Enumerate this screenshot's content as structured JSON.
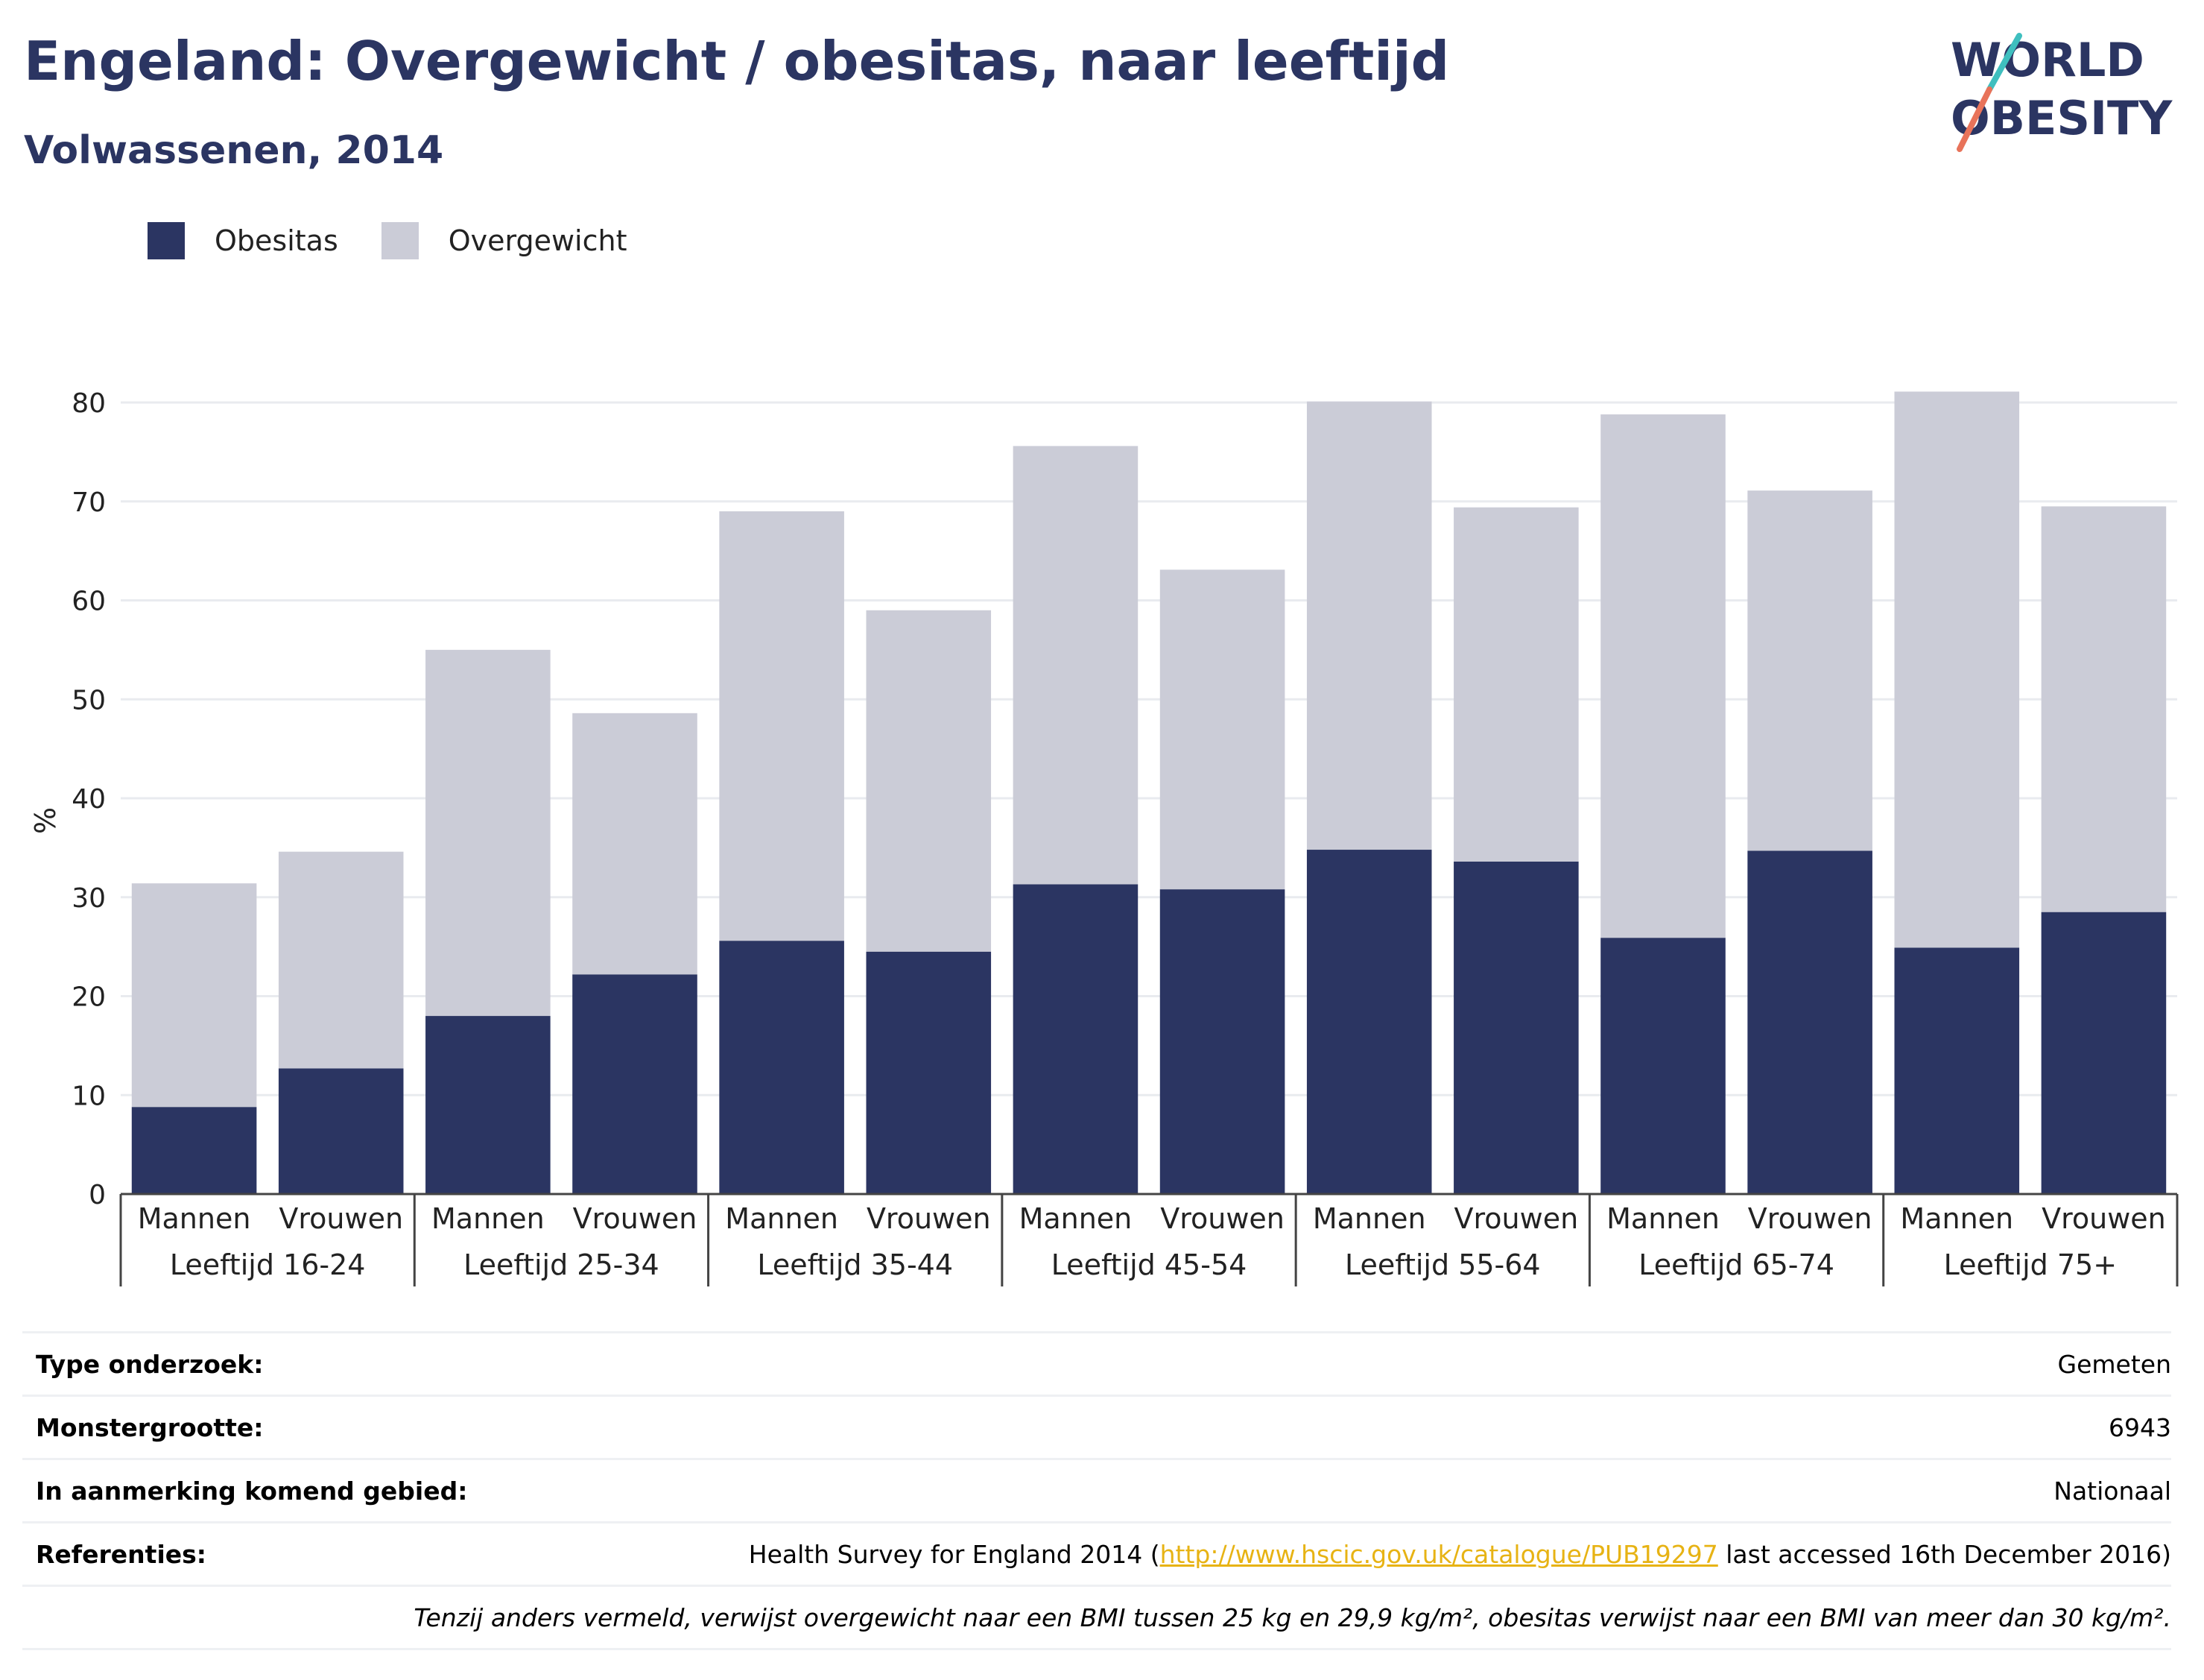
{
  "header": {
    "title": "Engeland: Overgewicht / obesitas, naar leeftijd",
    "subtitle": "Volwassenen, 2014"
  },
  "logo": {
    "line1": "WORLD",
    "line2": "OBESITY",
    "colors": {
      "text": "#2b3562",
      "slash_top": "#3fbfbf",
      "slash_bottom": "#e8735a"
    }
  },
  "legend": [
    {
      "label": "Obesitas",
      "color": "#2b3562"
    },
    {
      "label": "Overgewicht",
      "color": "#cbccd7"
    }
  ],
  "chart_data": {
    "type": "bar",
    "stacked": true,
    "ylabel": "%",
    "ylim": [
      0,
      80
    ],
    "yticks": [
      0,
      10,
      20,
      30,
      40,
      50,
      60,
      70,
      80
    ],
    "grid": true,
    "legend_placement": "top-left",
    "groups": [
      "Leeftijd 16-24",
      "Leeftijd 25-34",
      "Leeftijd 35-44",
      "Leeftijd 45-54",
      "Leeftijd 55-64",
      "Leeftijd 65-74",
      "Leeftijd 75+"
    ],
    "categories": [
      "Mannen",
      "Vrouwen",
      "Mannen",
      "Vrouwen",
      "Mannen",
      "Vrouwen",
      "Mannen",
      "Vrouwen",
      "Mannen",
      "Vrouwen",
      "Mannen",
      "Vrouwen",
      "Mannen",
      "Vrouwen"
    ],
    "series": [
      {
        "name": "Obesitas",
        "color": "#2b3562",
        "values": [
          8.8,
          12.7,
          18.0,
          22.2,
          25.6,
          24.5,
          31.3,
          30.8,
          34.8,
          33.6,
          25.9,
          34.7,
          24.9,
          28.5
        ]
      },
      {
        "name": "Overgewicht",
        "color": "#cbccd7",
        "values": [
          22.6,
          21.9,
          37.0,
          26.4,
          43.4,
          34.5,
          44.3,
          32.3,
          45.3,
          35.8,
          52.9,
          36.4,
          56.2,
          41.0
        ]
      }
    ]
  },
  "info": {
    "type_label": "Type onderzoek:",
    "type_value": "Gemeten",
    "sample_label": "Monstergrootte:",
    "sample_value": "6943",
    "area_label": "In aanmerking komend gebied:",
    "area_value": "Nationaal",
    "ref_label": "Referenties:",
    "ref_prefix": "Health Survey for England 2014 (",
    "ref_link": "http://www.hscic.gov.uk/catalogue/PUB19297",
    "ref_suffix": " last accessed 16th December 2016)",
    "note": "Tenzij anders vermeld, verwijst overgewicht naar een BMI tussen 25 kg en 29,9 kg/m², obesitas verwijst naar een BMI van meer dan 30 kg/m²."
  }
}
